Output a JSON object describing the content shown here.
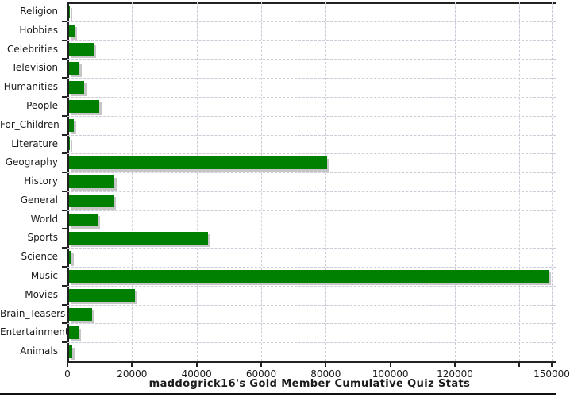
{
  "chart_data": {
    "type": "bar",
    "orientation": "horizontal",
    "title": "maddogrick16's Gold Member Cumulative Quiz Stats",
    "xlabel": "",
    "ylabel": "",
    "categories": [
      "Religion",
      "Hobbies",
      "Celebrities",
      "Television",
      "Humanities",
      "People",
      "For_Children",
      "Literature",
      "Geography",
      "History",
      "General",
      "World",
      "Sports",
      "Science",
      "Music",
      "Movies",
      "Brain_Teasers",
      "Entertainment",
      "Animals"
    ],
    "values": [
      400,
      2100,
      7900,
      3600,
      5000,
      9700,
      1800,
      350,
      80300,
      14500,
      14100,
      9300,
      43300,
      1000,
      149000,
      20800,
      7400,
      3300,
      1300
    ],
    "xlim": [
      0,
      150000
    ],
    "x_ticks": [
      0,
      20000,
      40000,
      60000,
      80000,
      100000,
      120000,
      140000,
      150000
    ],
    "x_tick_labels": [
      "0",
      "20000",
      "40000",
      "60000",
      "80000",
      "100000",
      "120000",
      "",
      "150000"
    ],
    "grid": true,
    "legend": false,
    "colors": {
      "bar": "#008000",
      "bar_shadow": "#c6c6c6",
      "gridline": "#ccccd8",
      "axis": "#222222",
      "text": "#1a1a1a"
    }
  }
}
